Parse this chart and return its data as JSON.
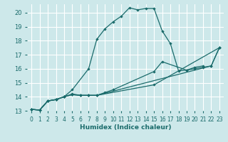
{
  "xlabel": "Humidex (Indice chaleur)",
  "ylabel": "",
  "bg_color": "#cde8ea",
  "grid_color": "#ffffff",
  "line_color": "#1a6b6b",
  "xlim": [
    -0.5,
    23.5
  ],
  "ylim": [
    13,
    20.6
  ],
  "xticks": [
    0,
    1,
    2,
    3,
    4,
    5,
    6,
    7,
    8,
    9,
    10,
    11,
    12,
    13,
    14,
    15,
    16,
    17,
    18,
    19,
    20,
    21,
    22,
    23
  ],
  "yticks": [
    13,
    14,
    15,
    16,
    17,
    18,
    19,
    20
  ],
  "line1_x": [
    0,
    1,
    2,
    3,
    4,
    5,
    7,
    8,
    9,
    10,
    11,
    12,
    13,
    14,
    15,
    16,
    17,
    18,
    19,
    20,
    21
  ],
  "line1_y": [
    13.1,
    13.05,
    13.7,
    13.8,
    14.0,
    14.5,
    16.0,
    18.1,
    18.85,
    19.35,
    19.75,
    20.35,
    20.2,
    20.3,
    20.3,
    18.7,
    17.8,
    15.85,
    15.9,
    16.1,
    16.2
  ],
  "line2_x": [
    0,
    1,
    2,
    3,
    4,
    5,
    6,
    7,
    8,
    9,
    10,
    15,
    16,
    19,
    20,
    21,
    22,
    23
  ],
  "line2_y": [
    13.1,
    13.05,
    13.7,
    13.8,
    14.0,
    14.2,
    14.1,
    14.1,
    14.1,
    14.3,
    14.5,
    15.8,
    16.5,
    15.9,
    16.0,
    16.1,
    16.2,
    17.5
  ],
  "line3_x": [
    0,
    1,
    2,
    3,
    4,
    5,
    6,
    7,
    8,
    22,
    23
  ],
  "line3_y": [
    13.1,
    13.05,
    13.7,
    13.8,
    14.0,
    14.15,
    14.1,
    14.1,
    14.1,
    16.2,
    17.5
  ],
  "line4_x": [
    0,
    1,
    2,
    3,
    4,
    5,
    6,
    7,
    8,
    15,
    23
  ],
  "line4_y": [
    13.1,
    13.05,
    13.7,
    13.8,
    14.0,
    14.15,
    14.1,
    14.1,
    14.1,
    14.85,
    17.5
  ]
}
